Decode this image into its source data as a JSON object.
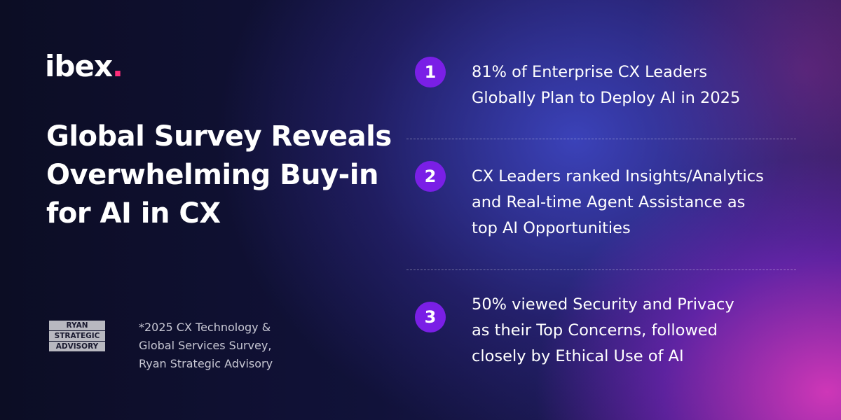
{
  "logo": {
    "text": "ibex",
    "dot": "."
  },
  "title": {
    "lines": [
      "Global Survey Reveals",
      "Overwhelming Buy-in",
      "for AI in CX"
    ]
  },
  "partner_logo": {
    "lines": [
      "RYAN",
      "STRATEGIC",
      "ADVISORY"
    ]
  },
  "footnote": {
    "lines": [
      "*2025 CX Technology &",
      "Global Services Survey,",
      "Ryan Strategic Advisory"
    ]
  },
  "items": [
    {
      "number": "1",
      "lines": [
        "81% of Enterprise CX Leaders",
        "Globally Plan to Deploy AI in 2025"
      ]
    },
    {
      "number": "2",
      "lines": [
        "CX Leaders ranked Insights/Analytics",
        "and Real-time Agent Assistance as",
        "top AI Opportunities"
      ]
    },
    {
      "number": "3",
      "lines": [
        "50% viewed Security and Privacy",
        "as their Top Concerns, followed",
        "closely by Ethical Use of AI"
      ]
    }
  ]
}
